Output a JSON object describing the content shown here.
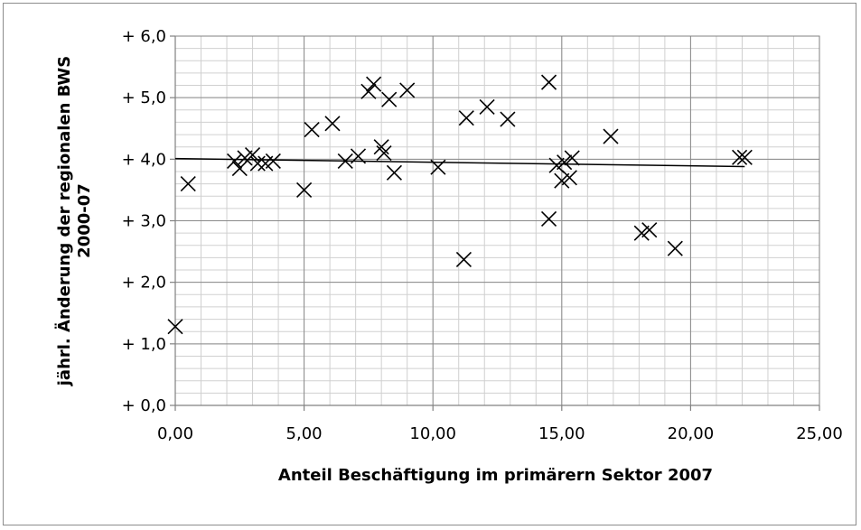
{
  "chart_data": {
    "type": "scatter",
    "xlabel": "Anteil Beschäftigung im primärern Sektor 2007",
    "ylabel_line1": "jährl. Änderung der regionalen BWS",
    "ylabel_line2": "2000-07",
    "xlim": [
      0,
      25
    ],
    "ylim": [
      0,
      6
    ],
    "x_ticks": [
      {
        "value": 0,
        "label": "0,00"
      },
      {
        "value": 5,
        "label": "5,00"
      },
      {
        "value": 10,
        "label": "10,00"
      },
      {
        "value": 15,
        "label": "15,00"
      },
      {
        "value": 20,
        "label": "20,00"
      },
      {
        "value": 25,
        "label": "25,00"
      }
    ],
    "y_ticks": [
      {
        "value": 0,
        "label": "+ 0,0"
      },
      {
        "value": 1,
        "label": "+ 1,0"
      },
      {
        "value": 2,
        "label": "+ 2,0"
      },
      {
        "value": 3,
        "label": "+ 3,0"
      },
      {
        "value": 4,
        "label": "+ 4,0"
      },
      {
        "value": 5,
        "label": "+ 5,0"
      },
      {
        "value": 6,
        "label": "+ 6,0"
      }
    ],
    "minor_grid_x_step": 1,
    "minor_grid_y_step": 0.2,
    "grid": true,
    "marker": "x",
    "points": [
      [
        0.0,
        1.28
      ],
      [
        0.5,
        3.6
      ],
      [
        2.3,
        3.97
      ],
      [
        2.5,
        3.85
      ],
      [
        2.7,
        4.02
      ],
      [
        3.0,
        4.07
      ],
      [
        3.2,
        3.93
      ],
      [
        3.5,
        3.93
      ],
      [
        3.8,
        3.97
      ],
      [
        5.0,
        3.5
      ],
      [
        5.3,
        4.48
      ],
      [
        6.1,
        4.58
      ],
      [
        6.6,
        3.97
      ],
      [
        7.1,
        4.05
      ],
      [
        7.5,
        5.1
      ],
      [
        7.7,
        5.22
      ],
      [
        8.0,
        4.2
      ],
      [
        8.1,
        4.1
      ],
      [
        8.3,
        4.97
      ],
      [
        8.5,
        3.78
      ],
      [
        9.0,
        5.12
      ],
      [
        10.2,
        3.87
      ],
      [
        11.2,
        2.37
      ],
      [
        11.3,
        4.67
      ],
      [
        12.1,
        4.85
      ],
      [
        12.9,
        4.65
      ],
      [
        14.5,
        5.25
      ],
      [
        14.5,
        3.03
      ],
      [
        14.8,
        3.9
      ],
      [
        15.0,
        3.65
      ],
      [
        15.1,
        3.95
      ],
      [
        15.3,
        3.7
      ],
      [
        15.4,
        4.02
      ],
      [
        16.9,
        4.37
      ],
      [
        18.1,
        2.8
      ],
      [
        18.4,
        2.85
      ],
      [
        19.4,
        2.55
      ],
      [
        21.9,
        4.03
      ],
      [
        22.1,
        4.03
      ]
    ],
    "trendline": {
      "x_start": 0,
      "y_start": 4.01,
      "x_end": 22.1,
      "y_end": 3.88
    }
  }
}
